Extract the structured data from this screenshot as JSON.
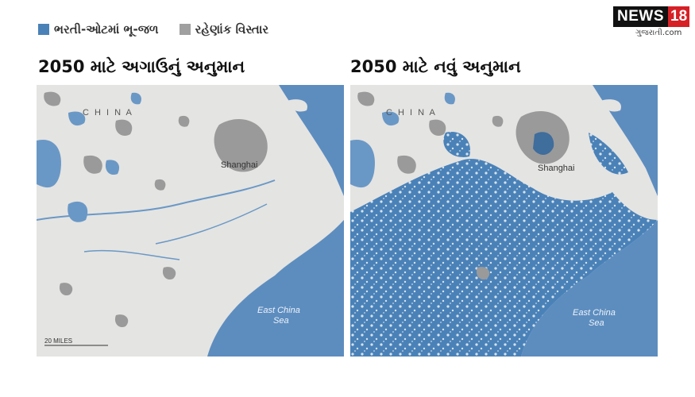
{
  "legend": {
    "items": [
      {
        "label": "ભરતી-ઓટમાં ભૂ-જળ",
        "color": "#4a82b8"
      },
      {
        "label": "રહેણાંક વિસ્તાર",
        "color": "#a0a0a0"
      }
    ]
  },
  "logo": {
    "news": "NEWS",
    "number": "18",
    "sub": "ગુજરાતી.com"
  },
  "panels": [
    {
      "title": "2050 માટે અગાઉનું અનુમાન",
      "country_label": "C H I N A",
      "city_label": "Shanghai",
      "sea_label_1": "East China",
      "sea_label_2": "Sea",
      "scale_label": "20 MILES"
    },
    {
      "title": "2050 માટે નવું અનુમાન",
      "country_label": "C H I N A",
      "city_label": "Shanghai",
      "sea_label_1": "East China",
      "sea_label_2": "Sea"
    }
  ],
  "colors": {
    "sea": "#5d8dbf",
    "land": "#e4e4e2",
    "flood": "#4a82b8",
    "urban": "#9a9a9a",
    "water_body": "#6a98c6"
  }
}
